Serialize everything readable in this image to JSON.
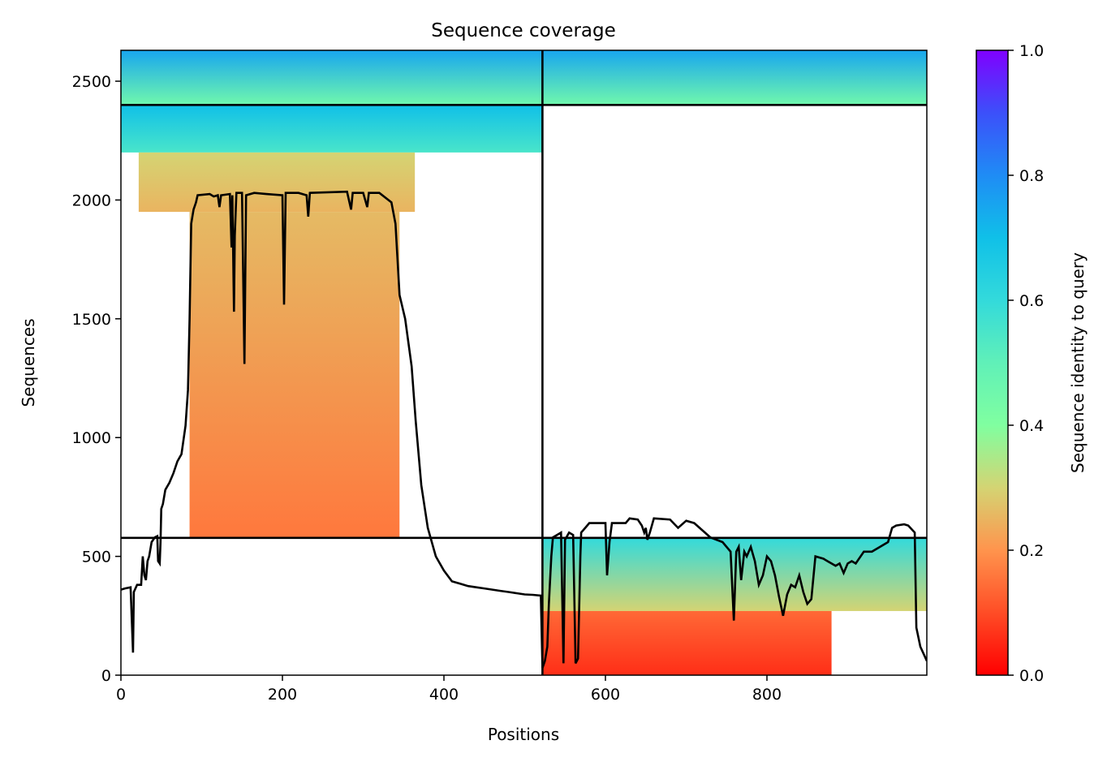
{
  "chart_data": {
    "type": "heatmap",
    "title": "Sequence coverage",
    "xlabel": "Positions",
    "ylabel": "Sequences",
    "xlim": [
      0,
      998
    ],
    "ylim": [
      0,
      2630
    ],
    "xticks": [
      0,
      200,
      400,
      600,
      800
    ],
    "yticks": [
      0,
      500,
      1000,
      1500,
      2000,
      2500
    ],
    "colorbar": {
      "label": "Sequence identity to query",
      "colormap": "rainbow_r",
      "range": [
        0,
        1
      ],
      "ticks": [
        "0.0",
        "0.2",
        "0.4",
        "0.6",
        "0.8",
        "1.0"
      ]
    },
    "dividers": {
      "vertical_x": 522,
      "horizontal_y": [
        578,
        2400
      ]
    },
    "blocks": [
      {
        "x": [
          0,
          522
        ],
        "y": [
          2400,
          2630
        ],
        "identity_bottom": 0.45,
        "identity_top": 0.75
      },
      {
        "x": [
          0,
          522
        ],
        "y": [
          2200,
          2400
        ],
        "identity_bottom": 0.55,
        "identity_top": 0.7
      },
      {
        "x": [
          22,
          364
        ],
        "y": [
          1950,
          2200
        ],
        "identity_bottom": 0.25,
        "identity_top": 0.3
      },
      {
        "x": [
          85,
          345
        ],
        "y": [
          578,
          1950
        ],
        "identity_bottom": 0.16,
        "identity_top": 0.26
      },
      {
        "x": [
          522,
          998
        ],
        "y": [
          2400,
          2630
        ],
        "identity_bottom": 0.45,
        "identity_top": 0.75
      },
      {
        "x": [
          522,
          998
        ],
        "y": [
          270,
          578
        ],
        "identity_bottom": 0.3,
        "identity_top": 0.6
      },
      {
        "x": [
          522,
          880
        ],
        "y": [
          0,
          270
        ],
        "identity_bottom": 0.06,
        "identity_top": 0.14
      }
    ],
    "coverage_line": [
      [
        0,
        360
      ],
      [
        5,
        365
      ],
      [
        12,
        370
      ],
      [
        15,
        95
      ],
      [
        16,
        350
      ],
      [
        20,
        380
      ],
      [
        25,
        380
      ],
      [
        27,
        500
      ],
      [
        29,
        420
      ],
      [
        31,
        400
      ],
      [
        33,
        480
      ],
      [
        35,
        500
      ],
      [
        38,
        560
      ],
      [
        42,
        580
      ],
      [
        45,
        585
      ],
      [
        46,
        480
      ],
      [
        48,
        470
      ],
      [
        49,
        560
      ],
      [
        50,
        700
      ],
      [
        52,
        720
      ],
      [
        55,
        780
      ],
      [
        60,
        810
      ],
      [
        65,
        850
      ],
      [
        70,
        900
      ],
      [
        75,
        930
      ],
      [
        80,
        1050
      ],
      [
        83,
        1200
      ],
      [
        85,
        1500
      ],
      [
        87,
        1900
      ],
      [
        90,
        1960
      ],
      [
        93,
        1990
      ],
      [
        95,
        2020
      ],
      [
        110,
        2025
      ],
      [
        115,
        2015
      ],
      [
        120,
        2020
      ],
      [
        122,
        1970
      ],
      [
        124,
        2020
      ],
      [
        135,
        2025
      ],
      [
        137,
        1800
      ],
      [
        138,
        2020
      ],
      [
        140,
        1530
      ],
      [
        141,
        1850
      ],
      [
        143,
        2030
      ],
      [
        150,
        2030
      ],
      [
        153,
        1310
      ],
      [
        155,
        2020
      ],
      [
        165,
        2030
      ],
      [
        180,
        2025
      ],
      [
        200,
        2020
      ],
      [
        202,
        1560
      ],
      [
        204,
        2030
      ],
      [
        220,
        2030
      ],
      [
        230,
        2020
      ],
      [
        232,
        1930
      ],
      [
        234,
        2030
      ],
      [
        280,
        2035
      ],
      [
        285,
        1960
      ],
      [
        287,
        2030
      ],
      [
        300,
        2030
      ],
      [
        305,
        1970
      ],
      [
        307,
        2030
      ],
      [
        320,
        2030
      ],
      [
        335,
        1990
      ],
      [
        340,
        1900
      ],
      [
        345,
        1600
      ],
      [
        352,
        1500
      ],
      [
        360,
        1300
      ],
      [
        365,
        1070
      ],
      [
        372,
        800
      ],
      [
        380,
        620
      ],
      [
        390,
        500
      ],
      [
        400,
        440
      ],
      [
        410,
        395
      ],
      [
        420,
        385
      ],
      [
        430,
        375
      ],
      [
        440,
        370
      ],
      [
        450,
        365
      ],
      [
        460,
        360
      ],
      [
        470,
        355
      ],
      [
        480,
        350
      ],
      [
        490,
        345
      ],
      [
        500,
        340
      ],
      [
        510,
        338
      ],
      [
        520,
        335
      ],
      [
        522,
        30
      ],
      [
        525,
        60
      ],
      [
        528,
        120
      ],
      [
        530,
        300
      ],
      [
        533,
        500
      ],
      [
        535,
        580
      ],
      [
        540,
        590
      ],
      [
        545,
        600
      ],
      [
        548,
        50
      ],
      [
        550,
        570
      ],
      [
        555,
        600
      ],
      [
        560,
        590
      ],
      [
        563,
        50
      ],
      [
        566,
        70
      ],
      [
        569,
        500
      ],
      [
        570,
        600
      ],
      [
        575,
        620
      ],
      [
        580,
        640
      ],
      [
        600,
        640
      ],
      [
        602,
        420
      ],
      [
        605,
        560
      ],
      [
        608,
        640
      ],
      [
        625,
        640
      ],
      [
        630,
        660
      ],
      [
        640,
        655
      ],
      [
        645,
        630
      ],
      [
        648,
        600
      ],
      [
        650,
        620
      ],
      [
        652,
        570
      ],
      [
        655,
        600
      ],
      [
        660,
        660
      ],
      [
        680,
        655
      ],
      [
        690,
        620
      ],
      [
        700,
        650
      ],
      [
        710,
        640
      ],
      [
        730,
        580
      ],
      [
        745,
        560
      ],
      [
        755,
        520
      ],
      [
        759,
        230
      ],
      [
        762,
        520
      ],
      [
        765,
        540
      ],
      [
        768,
        400
      ],
      [
        772,
        520
      ],
      [
        775,
        500
      ],
      [
        780,
        540
      ],
      [
        785,
        480
      ],
      [
        790,
        380
      ],
      [
        795,
        420
      ],
      [
        800,
        500
      ],
      [
        805,
        480
      ],
      [
        810,
        420
      ],
      [
        815,
        330
      ],
      [
        820,
        250
      ],
      [
        825,
        340
      ],
      [
        830,
        380
      ],
      [
        835,
        370
      ],
      [
        840,
        420
      ],
      [
        845,
        350
      ],
      [
        850,
        300
      ],
      [
        855,
        320
      ],
      [
        860,
        500
      ],
      [
        870,
        490
      ],
      [
        875,
        480
      ],
      [
        885,
        460
      ],
      [
        890,
        470
      ],
      [
        895,
        430
      ],
      [
        900,
        470
      ],
      [
        905,
        480
      ],
      [
        910,
        470
      ],
      [
        920,
        520
      ],
      [
        930,
        520
      ],
      [
        940,
        540
      ],
      [
        950,
        560
      ],
      [
        955,
        620
      ],
      [
        960,
        630
      ],
      [
        970,
        635
      ],
      [
        975,
        630
      ],
      [
        983,
        600
      ],
      [
        985,
        200
      ],
      [
        990,
        120
      ],
      [
        998,
        60
      ]
    ]
  }
}
